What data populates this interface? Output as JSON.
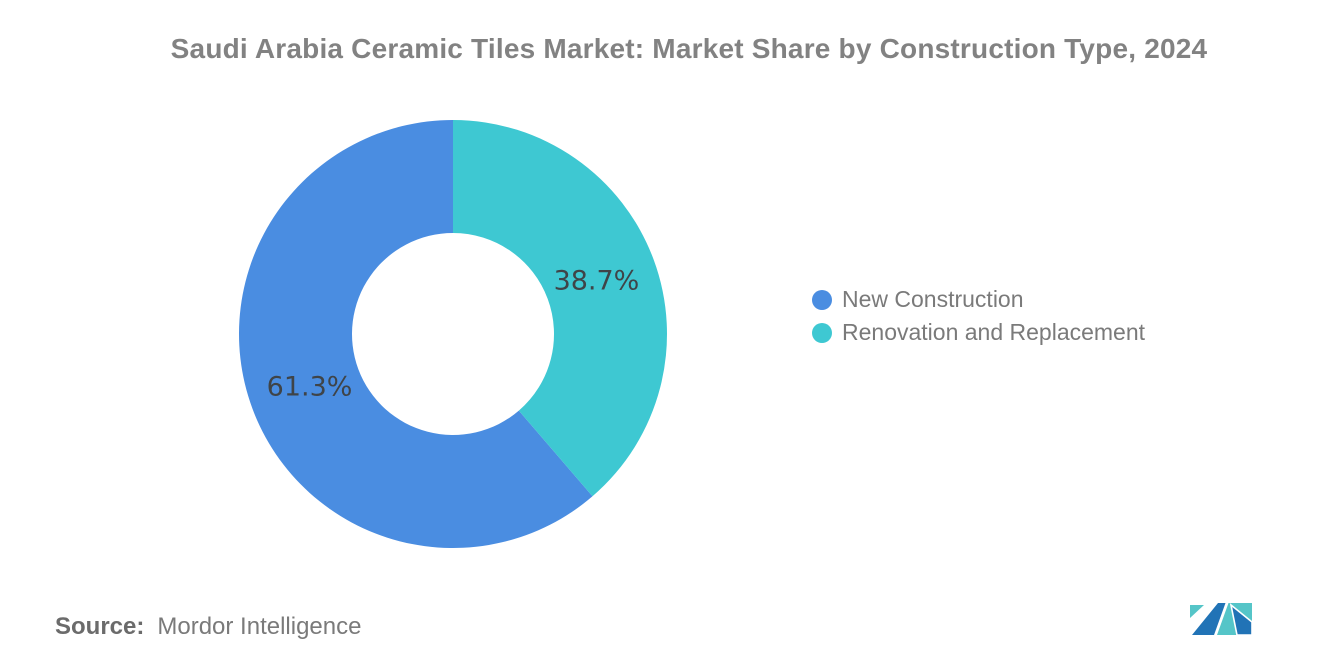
{
  "title": "Saudi Arabia Ceramic Tiles Market: Market Share by Construction Type, 2024",
  "chart_data": {
    "type": "pie",
    "subtype": "donut",
    "title": "Saudi Arabia Ceramic Tiles Market: Market Share by Construction Type, 2024",
    "categories": [
      "New Construction",
      "Renovation and Replacement"
    ],
    "values": [
      61.3,
      38.7
    ],
    "labels": [
      "61.3%",
      "38.7%"
    ],
    "colors": [
      "#4A8DE1",
      "#3EC8D2"
    ],
    "label_color": "#3F4448",
    "legend_position": "right",
    "start_angle_deg": 0,
    "direction": "counterclockwise",
    "inner_radius_ratio": 0.47
  },
  "source": {
    "label": "Source:",
    "value": "Mordor Intelligence"
  },
  "logo": {
    "name": "mordor-intelligence-logo-mark",
    "blue": "#2173B6",
    "teal": "#55C5C8"
  }
}
